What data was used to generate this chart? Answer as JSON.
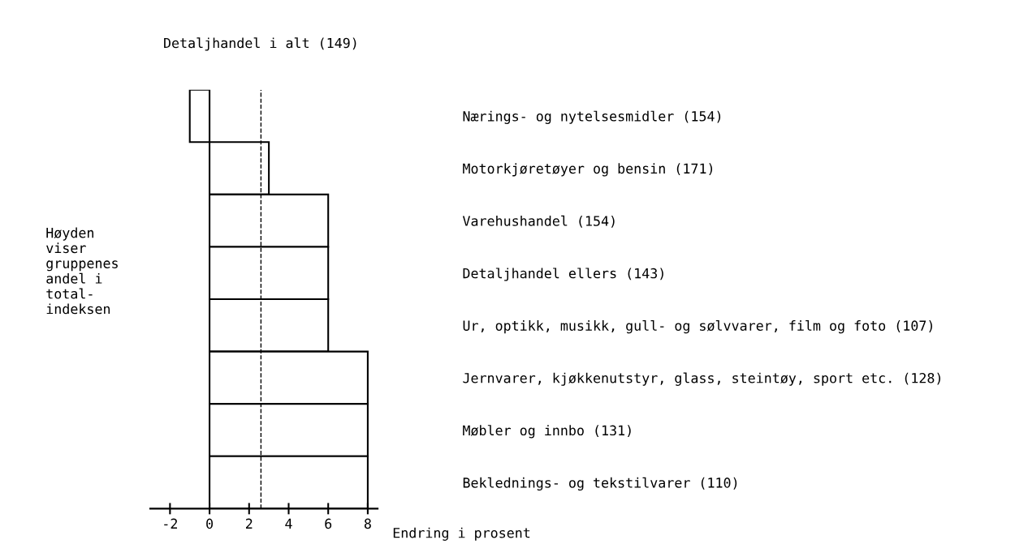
{
  "chart_data": {
    "type": "bar",
    "orientation": "horizontal",
    "categories": [
      "Nærings- og nytelsesmidler (154)",
      "Motorkjøretøyer og bensin (171)",
      "Varehushandel (154)",
      "Detaljhandel ellers (143)",
      "Ur, optikk, musikk, gull- og sølvvarer, film og foto (107)",
      "Jernvarer, kjøkkenutstyr, glass, steintøy, sport etc. (128)",
      "Møbler og innbo (131)",
      "Beklednings- og tekstilvarer (110)"
    ],
    "values": [
      -1,
      3,
      6,
      6,
      6,
      8,
      8,
      8
    ],
    "color": "#ffffff",
    "xlabel": "Endring i prosent",
    "ylabel": "Høyden\nviser\ngruppenes\nandel i\ntotal-\nindeksen",
    "xlim": [
      -3,
      8.5
    ],
    "xticks": [
      -2,
      0,
      2,
      4,
      6,
      8
    ],
    "ref_lines": [
      {
        "axis": "x",
        "value": 2.6,
        "label": "Detaljhandel i alt (149)",
        "line_style": "dashed"
      }
    ],
    "grid": false,
    "legend": false
  }
}
